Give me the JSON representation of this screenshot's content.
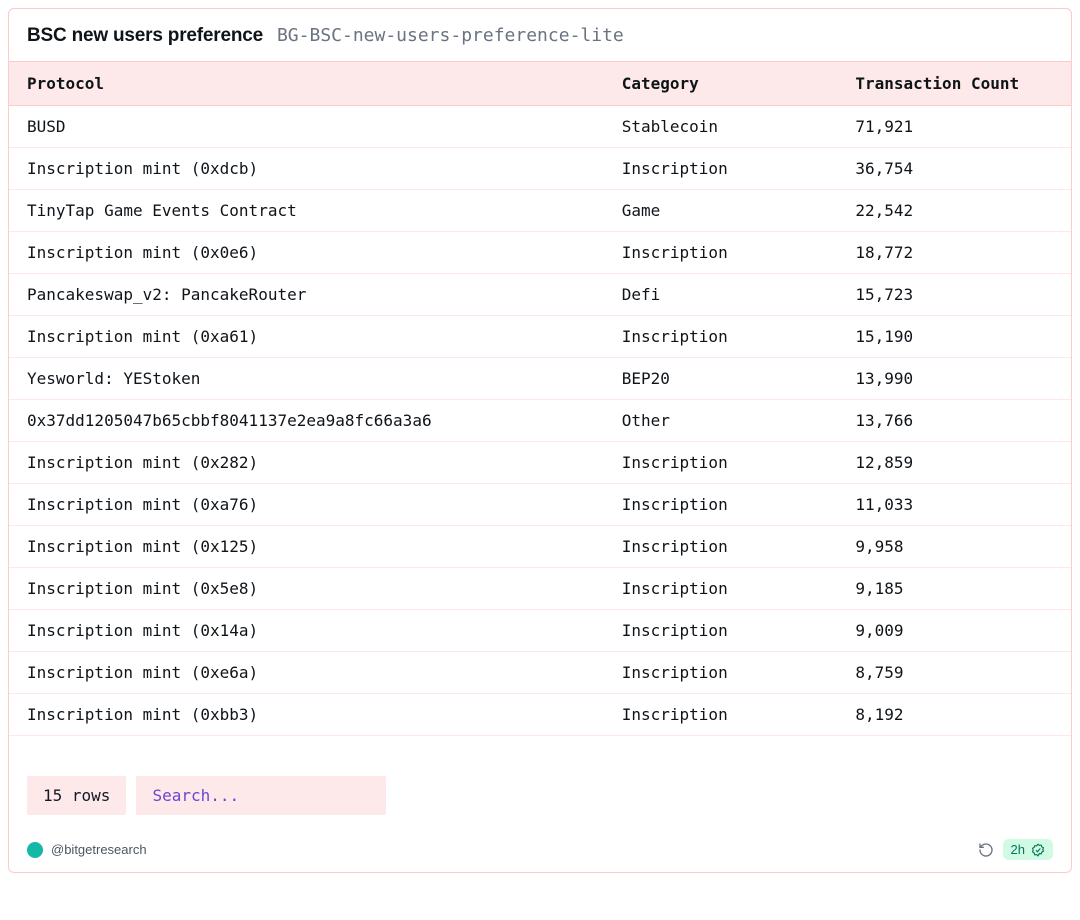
{
  "header": {
    "title": "BSC new users preference",
    "subtitle": "BG-BSC-new-users-preference-lite"
  },
  "table": {
    "columns": [
      "Protocol",
      "Category",
      "Transaction Count"
    ],
    "rows": [
      [
        "BUSD",
        "Stablecoin",
        "71,921"
      ],
      [
        "Inscription mint (0xdcb)",
        "Inscription",
        "36,754"
      ],
      [
        "TinyTap Game Events Contract",
        "Game",
        "22,542"
      ],
      [
        "Inscription mint (0x0e6)",
        "Inscription",
        "18,772"
      ],
      [
        "Pancakeswap_v2: PancakeRouter",
        "Defi",
        "15,723"
      ],
      [
        "Inscription mint (0xa61)",
        "Inscription",
        "15,190"
      ],
      [
        "Yesworld: YEStoken",
        "BEP20",
        "13,990"
      ],
      [
        "0x37dd1205047b65cbbf8041137e2ea9a8fc66a3a6",
        "Other",
        "13,766"
      ],
      [
        "Inscription mint (0x282)",
        "Inscription",
        "12,859"
      ],
      [
        "Inscription mint (0xa76)",
        "Inscription",
        "11,033"
      ],
      [
        "Inscription mint (0x125)",
        "Inscription",
        "9,958"
      ],
      [
        "Inscription mint (0x5e8)",
        "Inscription",
        "9,185"
      ],
      [
        "Inscription mint (0x14a)",
        "Inscription",
        "9,009"
      ],
      [
        "Inscription mint (0xe6a)",
        "Inscription",
        "8,759"
      ],
      [
        "Inscription mint (0xbb3)",
        "Inscription",
        "8,192"
      ]
    ]
  },
  "footer": {
    "row_count_label": "15 rows",
    "search_placeholder": "Search...",
    "author_handle": "@bitgetresearch",
    "age_label": "2h"
  },
  "colors": {
    "card_border": "#fecaca",
    "header_bg": "#fde9e9",
    "row_divider": "#fde9e9",
    "pill_bg": "#fde9e9",
    "search_text": "#6b46d1",
    "avatar_bg": "#14b8a6",
    "badge_bg": "#d1fae5",
    "badge_text": "#047857"
  }
}
